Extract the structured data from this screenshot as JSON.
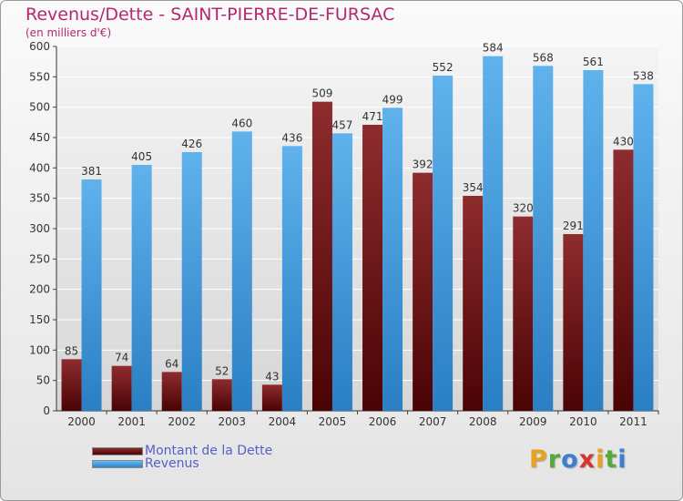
{
  "chart_data": {
    "type": "bar",
    "title": "Revenus/Dette - SAINT-PIERRE-DE-FURSAC",
    "subtitle": "(en milliers d'€)",
    "categories": [
      "2000",
      "2001",
      "2002",
      "2003",
      "2004",
      "2005",
      "2006",
      "2007",
      "2008",
      "2009",
      "2010",
      "2011"
    ],
    "series": [
      {
        "name": "Montant de la Dette",
        "values": [
          85,
          74,
          64,
          52,
          43,
          509,
          471,
          392,
          354,
          320,
          291,
          430
        ],
        "color": "#6b0f12"
      },
      {
        "name": "Revenus",
        "values": [
          381,
          405,
          426,
          460,
          436,
          457,
          499,
          552,
          584,
          568,
          561,
          538
        ],
        "color": "#3b98dd"
      }
    ],
    "ylim": [
      0,
      600
    ],
    "yticks": [
      0,
      50,
      100,
      150,
      200,
      250,
      300,
      350,
      400,
      450,
      500,
      550,
      600
    ],
    "grid": true,
    "legend_position": "bottom-left"
  },
  "brand": {
    "logo_letters": [
      "P",
      "r",
      "o",
      "x",
      "i",
      "t",
      "i"
    ],
    "logo_colors": [
      "#e8a21f",
      "#57a93a",
      "#3c7fd0",
      "#d8332f",
      "#e8a21f",
      "#57a93a",
      "#3c7fd0"
    ]
  }
}
